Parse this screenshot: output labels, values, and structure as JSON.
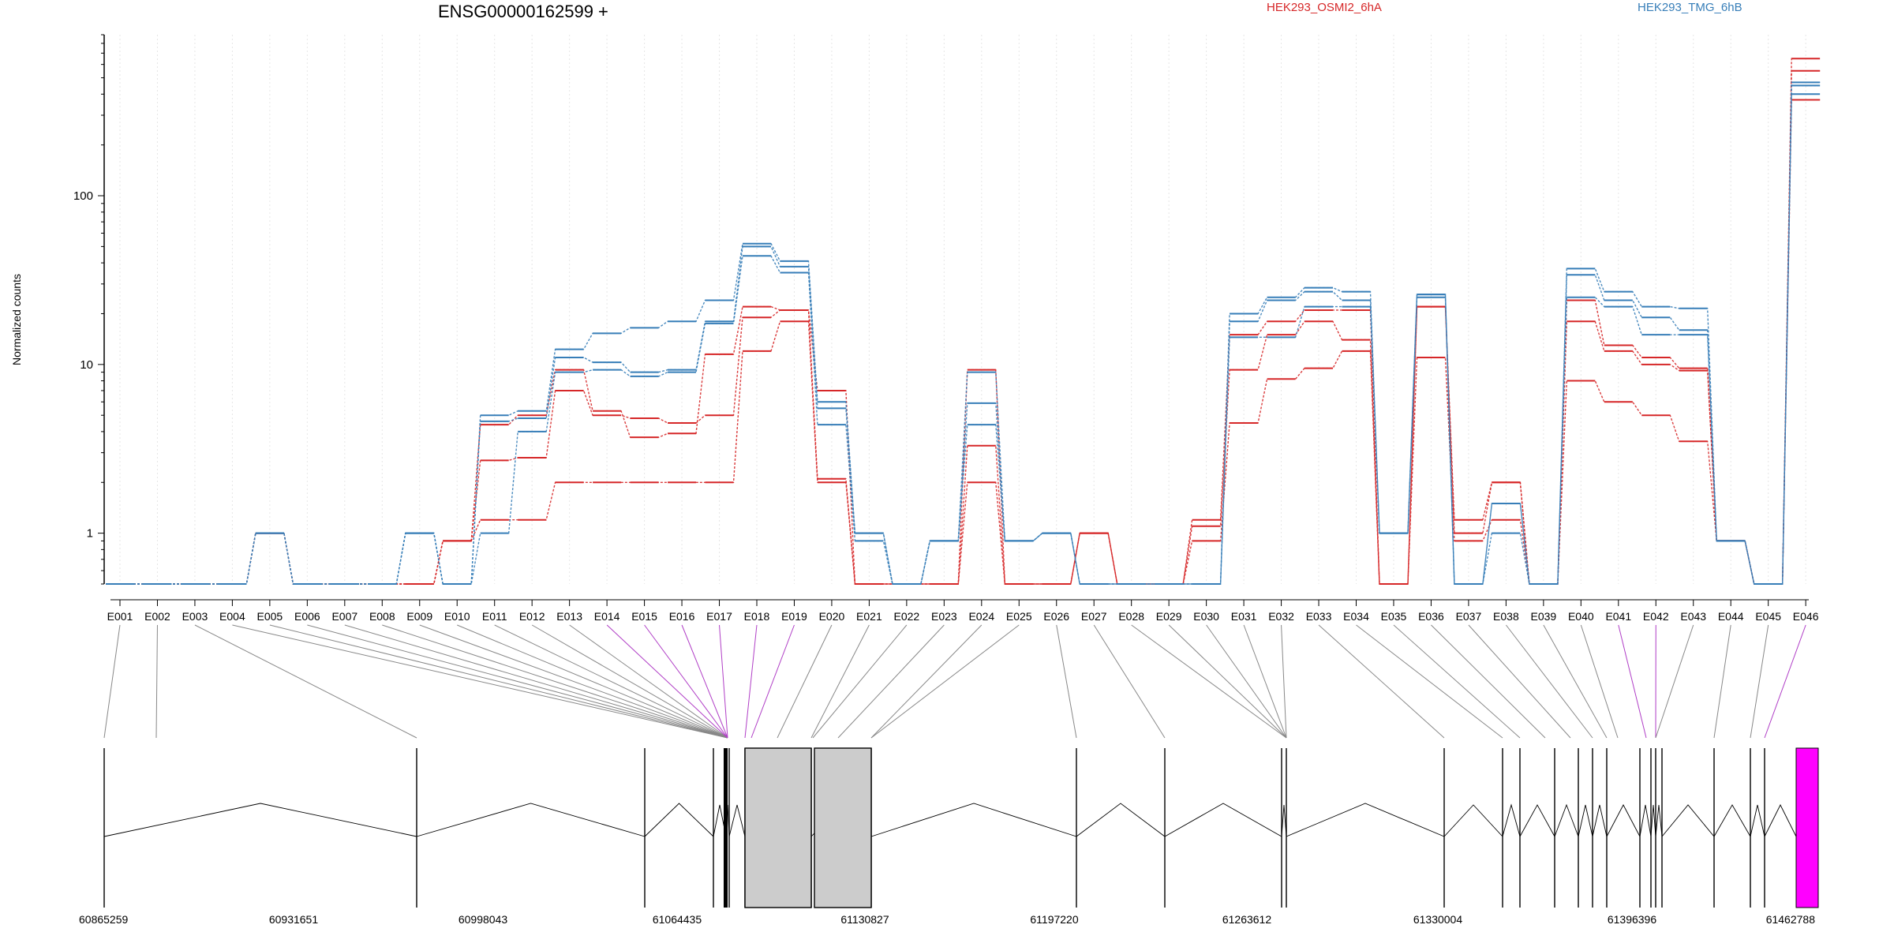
{
  "chart_data": {
    "type": "line",
    "title": "ENSG00000162599 +",
    "ylabel": "Normalized counts",
    "y_scale": "log",
    "ylim": [
      0.5,
      900
    ],
    "y_ticks": [
      {
        "value": 1,
        "label": "1"
      },
      {
        "value": 10,
        "label": "10"
      },
      {
        "value": 100,
        "label": "100"
      }
    ],
    "categories": [
      "E001",
      "E002",
      "E003",
      "E004",
      "E005",
      "E006",
      "E007",
      "E008",
      "E009",
      "E010",
      "E011",
      "E012",
      "E013",
      "E014",
      "E015",
      "E016",
      "E017",
      "E018",
      "E019",
      "E020",
      "E021",
      "E022",
      "E023",
      "E024",
      "E025",
      "E026",
      "E027",
      "E028",
      "E029",
      "E030",
      "E031",
      "E032",
      "E033",
      "E034",
      "E035",
      "E036",
      "E037",
      "E038",
      "E039",
      "E040",
      "E041",
      "E042",
      "E043",
      "E044",
      "E045",
      "E046"
    ],
    "legend": [
      {
        "label": "HEK293_OSMI2_6hA",
        "color": "#d62728"
      },
      {
        "label": "HEK293_TMG_6hB",
        "color": "#377eb8"
      }
    ],
    "series": [
      {
        "group": "HEK293_OSMI2_6hA",
        "color": "#d62728",
        "values": [
          0.5,
          0.5,
          0.5,
          0.5,
          1.0,
          0.5,
          0.5,
          0.5,
          0.5,
          0.9,
          1.2,
          1.2,
          2.0,
          2.0,
          2.0,
          2.0,
          2.0,
          12,
          18,
          2.0,
          0.5,
          0.5,
          0.5,
          2.0,
          0.5,
          0.5,
          1.0,
          0.5,
          0.5,
          0.9,
          4.5,
          8.2,
          9.5,
          12,
          0.5,
          11,
          0.9,
          1.2,
          0.5,
          8.0,
          6.0,
          5.0,
          3.5,
          0.9,
          0.5,
          650
        ]
      },
      {
        "group": "HEK293_OSMI2_6hA",
        "color": "#d62728",
        "values": [
          0.5,
          0.5,
          0.5,
          0.5,
          1.0,
          0.5,
          0.5,
          0.5,
          0.5,
          0.9,
          2.7,
          2.8,
          7.0,
          5.0,
          4.8,
          4.5,
          5.0,
          19,
          21,
          2.1,
          0.5,
          0.5,
          0.5,
          3.3,
          0.5,
          0.5,
          1.0,
          0.5,
          0.5,
          1.1,
          9.3,
          15,
          18,
          14,
          0.5,
          22,
          1.0,
          2.0,
          0.5,
          18,
          12,
          10,
          9.2,
          0.9,
          0.5,
          550
        ]
      },
      {
        "group": "HEK293_OSMI2_6hA",
        "color": "#d62728",
        "values": [
          0.5,
          0.5,
          0.5,
          0.5,
          1.0,
          0.5,
          0.5,
          0.5,
          0.5,
          0.9,
          4.4,
          5.0,
          9.3,
          5.3,
          3.7,
          3.9,
          11.5,
          22,
          21,
          7.0,
          0.5,
          0.5,
          0.5,
          9.3,
          0.5,
          0.5,
          1.0,
          0.5,
          0.5,
          1.2,
          15,
          18,
          21,
          21,
          0.5,
          22,
          1.2,
          2.0,
          0.5,
          24,
          13,
          11,
          9.5,
          0.9,
          0.5,
          370
        ]
      },
      {
        "group": "HEK293_TMG_6hB",
        "color": "#377eb8",
        "values": [
          0.5,
          0.5,
          0.5,
          0.5,
          1.0,
          0.5,
          0.5,
          0.5,
          1.0,
          0.5,
          1.0,
          4.0,
          9.0,
          9.3,
          8.5,
          9.0,
          17.5,
          44,
          35,
          4.4,
          0.9,
          0.5,
          0.9,
          4.4,
          0.9,
          1.0,
          0.5,
          0.5,
          0.5,
          0.5,
          14.5,
          14.5,
          22,
          22,
          1.0,
          25,
          0.5,
          1.0,
          0.5,
          25,
          22,
          15,
          15,
          0.9,
          0.5,
          400
        ]
      },
      {
        "group": "HEK293_TMG_6hB",
        "color": "#377eb8",
        "values": [
          0.5,
          0.5,
          0.5,
          0.5,
          1.0,
          0.5,
          0.5,
          0.5,
          1.0,
          0.5,
          4.6,
          4.8,
          11,
          10.3,
          9.0,
          9.3,
          18,
          50,
          38,
          5.5,
          1.0,
          0.5,
          0.9,
          5.9,
          0.9,
          1.0,
          0.5,
          0.5,
          0.5,
          0.5,
          18,
          24,
          27,
          24,
          1.0,
          26,
          0.5,
          1.5,
          0.5,
          34,
          24,
          19,
          16,
          0.9,
          0.5,
          450
        ]
      },
      {
        "group": "HEK293_TMG_6hB",
        "color": "#377eb8",
        "values": [
          0.5,
          0.5,
          0.5,
          0.5,
          1.0,
          0.5,
          0.5,
          0.5,
          1.0,
          0.5,
          5.0,
          5.3,
          12.3,
          15.3,
          16.5,
          18,
          24,
          52,
          41,
          6.0,
          1.0,
          0.5,
          0.9,
          9.0,
          0.9,
          1.0,
          0.5,
          0.5,
          0.5,
          0.5,
          20,
          25,
          28.5,
          27,
          1.0,
          26,
          0.5,
          1.5,
          0.5,
          37,
          27,
          22,
          21.5,
          0.9,
          0.5,
          470
        ]
      }
    ],
    "gene_model": {
      "coordinate_labels": [
        "60865259",
        "60931651",
        "60998043",
        "61064435",
        "61130827",
        "61197220",
        "61263612",
        "61330004",
        "61396396",
        "61462788"
      ],
      "highlighted_exons": [
        "E018",
        "E019",
        "E041",
        "E042",
        "E046"
      ],
      "exon_colors": {
        "default": "#000000",
        "grey": "#cccccc",
        "highlight": "#ff00ff"
      }
    }
  }
}
